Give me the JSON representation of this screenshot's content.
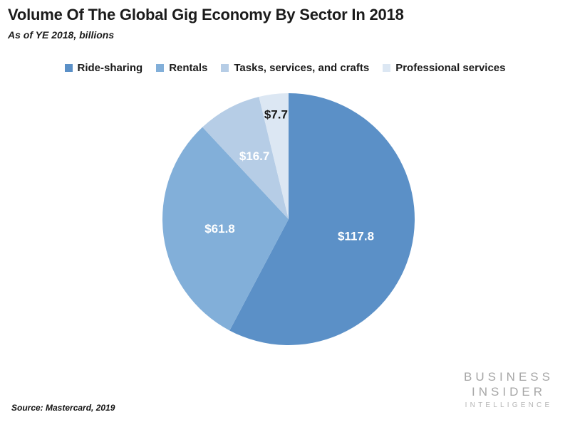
{
  "header": {
    "title": "Volume Of The Global Gig Economy By Sector In 2018",
    "subtitle": "As of YE 2018, billions"
  },
  "chart_data": {
    "type": "pie",
    "title": "Volume Of The Global Gig Economy By Sector In 2018",
    "subtitle": "As of YE 2018, billions",
    "unit": "USD billions",
    "total": 204.0,
    "start_angle_deg": 0,
    "direction": "clockwise",
    "legend_position": "top",
    "slices": [
      {
        "name": "Ride-sharing",
        "value": 117.8,
        "label": "$117.8",
        "color": "#5B90C7",
        "label_color": "#ffffff",
        "label_r": 0.55
      },
      {
        "name": "Rentals",
        "value": 61.8,
        "label": "$61.8",
        "color": "#82AFD9",
        "label_color": "#ffffff",
        "label_r": 0.55
      },
      {
        "name": "Tasks, services, and crafts",
        "value": 16.7,
        "label": "$16.7",
        "color": "#B6CDE6",
        "label_color": "#ffffff",
        "label_r": 0.57
      },
      {
        "name": "Professional services",
        "value": 7.7,
        "label": "$7.7",
        "color": "#DCE7F3",
        "label_color": "#1a1a1a",
        "label_r": 0.84
      }
    ]
  },
  "footer": {
    "source": "Source: Mastercard, 2019",
    "logo": {
      "line1": "BUSINESS",
      "line2": "INSIDER",
      "line3": "INTELLIGENCE"
    }
  }
}
